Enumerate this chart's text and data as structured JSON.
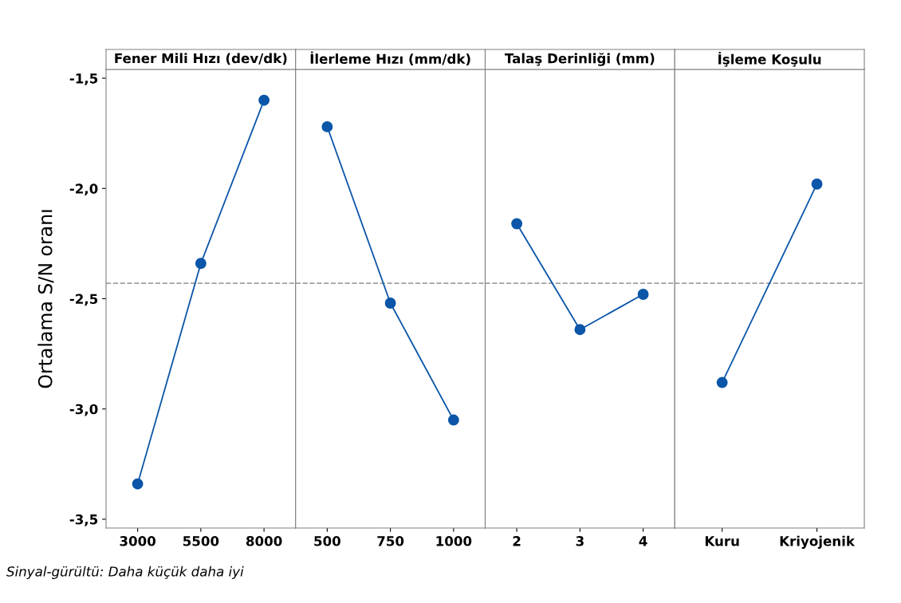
{
  "chart_data": [
    {
      "type": "line",
      "title": "Fener Mili Hızı (dev/dk)",
      "ylabel": "Ortalama S/N oranı",
      "categories": [
        "3000",
        "5500",
        "8000"
      ],
      "values": [
        -3.34,
        -2.34,
        -1.6
      ],
      "color": "#0b56a8",
      "marker": "circle",
      "ylim": [
        -3.54,
        -1.46
      ],
      "yticks": [
        {
          "value": -1.5,
          "label": "-1,5"
        },
        {
          "value": -2.0,
          "label": "-2,0"
        },
        {
          "value": -2.5,
          "label": "-2,5"
        },
        {
          "value": -3.0,
          "label": "-3,0"
        },
        {
          "value": -3.5,
          "label": "-3,5"
        }
      ],
      "ref_lines": [
        {
          "axis": "y",
          "value": -2.43,
          "color": "#a0a0a0",
          "line_style": "dashed"
        }
      ],
      "annotations": [
        "Sinyal-gürültü: Daha küçük daha iyi"
      ]
    },
    {
      "type": "line",
      "title": "İlerleme Hızı (mm/dk)",
      "categories": [
        "500",
        "750",
        "1000"
      ],
      "values": [
        -1.72,
        -2.52,
        -3.05
      ],
      "color": "#0b56a8",
      "marker": "circle",
      "ylim": [
        -3.54,
        -1.46
      ],
      "tick_labels": "x",
      "ref_lines": [
        {
          "axis": "y",
          "value": -2.43,
          "color": "#a0a0a0",
          "line_style": "dashed"
        }
      ]
    },
    {
      "type": "line",
      "title": "Talaş Derinliği (mm)",
      "categories": [
        "2",
        "3",
        "4"
      ],
      "values": [
        -2.16,
        -2.64,
        -2.48
      ],
      "color": "#0b56a8",
      "marker": "circle",
      "ylim": [
        -3.54,
        -1.46
      ],
      "tick_labels": "x",
      "ref_lines": [
        {
          "axis": "y",
          "value": -2.43,
          "color": "#a0a0a0",
          "line_style": "dashed"
        }
      ]
    },
    {
      "type": "line",
      "title": "İşleme Koşulu",
      "categories": [
        "Kuru",
        "Kriyojenik"
      ],
      "values": [
        -2.88,
        -1.98
      ],
      "color": "#0b56a8",
      "marker": "circle",
      "ylim": [
        -3.54,
        -1.46
      ],
      "tick_labels": "x",
      "ref_lines": [
        {
          "axis": "y",
          "value": -2.43,
          "color": "#a0a0a0",
          "line_style": "dashed"
        }
      ]
    }
  ]
}
